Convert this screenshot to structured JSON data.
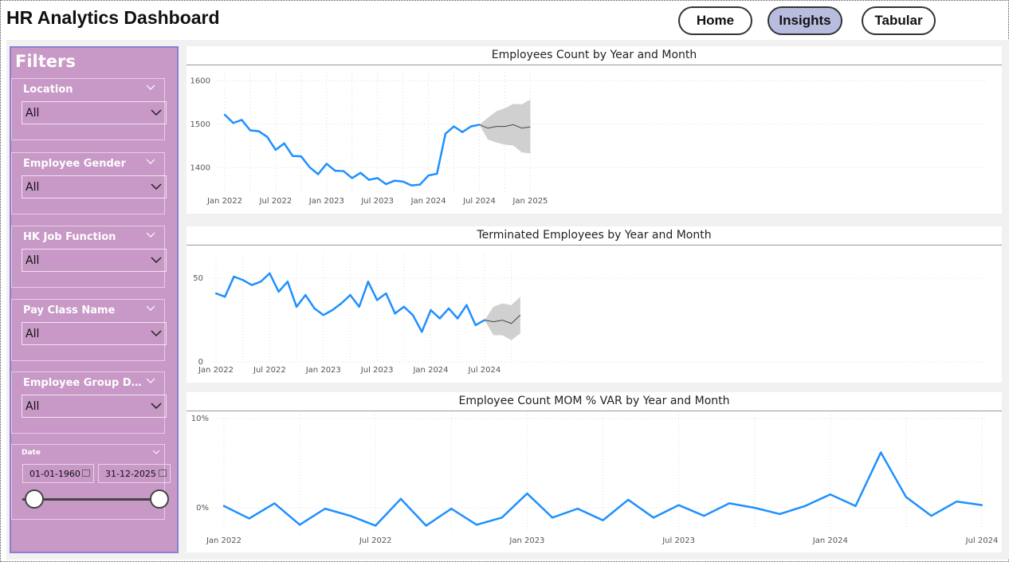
{
  "header": {
    "title": "HR Analytics Dashboard",
    "nav": [
      {
        "label": "Home",
        "active": false
      },
      {
        "label": "Insights",
        "active": true
      },
      {
        "label": "Tabular",
        "active": false
      }
    ]
  },
  "filters": {
    "title": "Filters",
    "items": [
      {
        "label": "Location",
        "value": "All"
      },
      {
        "label": "Employee Gender",
        "value": "All"
      },
      {
        "label": "HK Job Function",
        "value": "All"
      },
      {
        "label": "Pay Class Name",
        "value": "All"
      },
      {
        "label": "Employee Group Desc...",
        "value": "All"
      }
    ],
    "date": {
      "label": "Date",
      "start": "01-01-1960",
      "end": "31-12-2025"
    }
  },
  "colors": {
    "line": "#1e90ff",
    "forecast": "#444444",
    "band": "#d0d0d0",
    "sidebar": "#c898c6"
  },
  "chart_data": [
    {
      "type": "line",
      "title": "Employees Count by Year and Month",
      "x_ticks": [
        "Jan 2022",
        "Jul 2022",
        "Jan 2023",
        "Jul 2023",
        "Jan 2024",
        "Jul 2024",
        "Jan 2025"
      ],
      "y_ticks": [
        "1600",
        "1500",
        "1400"
      ],
      "ylim": [
        1340,
        1610
      ],
      "series": [
        {
          "values": [
            1522,
            1503,
            1510,
            1486,
            1484,
            1471,
            1441,
            1456,
            1427,
            1426,
            1401,
            1385,
            1409,
            1393,
            1392,
            1376,
            1388,
            1372,
            1376,
            1362,
            1370,
            1368,
            1359,
            1361,
            1382,
            1386,
            1478,
            1495,
            1482,
            1495,
            1499
          ]
        }
      ],
      "forecast": {
        "start_index": 30,
        "values": [
          1499,
          1491,
          1495,
          1495,
          1499,
          1491,
          1494
        ],
        "upper": [
          1499,
          1515,
          1530,
          1537,
          1547,
          1546,
          1557
        ],
        "lower": [
          1499,
          1465,
          1458,
          1453,
          1451,
          1435,
          1433
        ]
      }
    },
    {
      "type": "line",
      "title": "Terminated Employees by Year and Month",
      "x_ticks": [
        "Jan 2022",
        "Jul 2022",
        "Jan 2023",
        "Jul 2023",
        "Jan 2024",
        "Jul 2024"
      ],
      "y_ticks": [
        "50",
        "0"
      ],
      "ylim": [
        0,
        62
      ],
      "series": [
        {
          "values": [
            41,
            39,
            51,
            49,
            46,
            48,
            53,
            42,
            48,
            33,
            40,
            32,
            28,
            31,
            35,
            40,
            33,
            48,
            37,
            41,
            29,
            33,
            28,
            18,
            31,
            26,
            32,
            26,
            34,
            22,
            25
          ]
        }
      ],
      "forecast": {
        "start_index": 30,
        "values": [
          25,
          24,
          25,
          23,
          28
        ],
        "upper": [
          25,
          33,
          35,
          34,
          39
        ],
        "lower": [
          25,
          16,
          16,
          13,
          17
        ]
      }
    },
    {
      "type": "line",
      "title": "Employee Count MOM % VAR by Year and Month",
      "x_ticks": [
        "Jan 2022",
        "Jul 2022",
        "Jan 2023",
        "Jul 2023",
        "Jan 2024",
        "Jul 2024"
      ],
      "y_ticks": [
        "10%",
        "0%"
      ],
      "ylim": [
        -2.5,
        10
      ],
      "series": [
        {
          "values": [
            0.2,
            -1.2,
            0.5,
            -1.9,
            -0.1,
            -0.9,
            -2.0,
            1.0,
            -2.0,
            -0.1,
            -1.9,
            -1.1,
            1.6,
            -1.1,
            -0.1,
            -1.4,
            0.9,
            -1.1,
            0.3,
            -0.9,
            0.5,
            0.0,
            -0.7,
            0.2,
            1.5,
            0.2,
            6.2,
            1.2,
            -0.9,
            0.7,
            0.3
          ]
        }
      ]
    }
  ]
}
